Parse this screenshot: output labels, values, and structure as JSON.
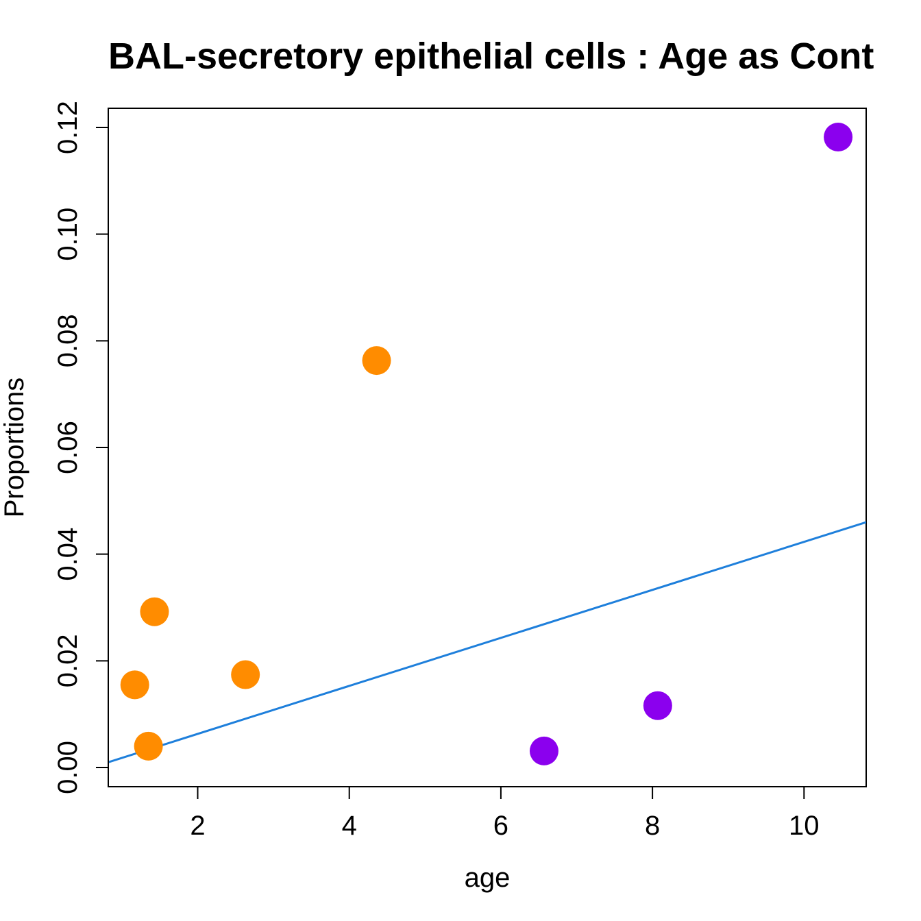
{
  "chart_data": {
    "type": "scatter",
    "title": "BAL-secretory epithelial cells : Age as Cont",
    "xlabel": "age",
    "ylabel": "Proportions",
    "xlim": [
      0.82,
      10.82
    ],
    "ylim": [
      -0.0036,
      0.1236
    ],
    "x_ticks": [
      2,
      4,
      6,
      8,
      10
    ],
    "x_tick_labels": [
      "2",
      "4",
      "6",
      "8",
      "10"
    ],
    "y_ticks": [
      0.0,
      0.02,
      0.04,
      0.06,
      0.08,
      0.1,
      0.12
    ],
    "y_tick_labels": [
      "0.00",
      "0.02",
      "0.04",
      "0.06",
      "0.08",
      "0.10",
      "0.12"
    ],
    "grid": false,
    "legend": "none",
    "series": [
      {
        "color": "#FF8C00",
        "points": [
          {
            "x": 1.17,
            "y": 0.0155
          },
          {
            "x": 1.43,
            "y": 0.0292
          },
          {
            "x": 1.35,
            "y": 0.004
          },
          {
            "x": 2.63,
            "y": 0.0174
          },
          {
            "x": 4.36,
            "y": 0.0763
          }
        ]
      },
      {
        "color": "#8B00EE",
        "points": [
          {
            "x": 6.57,
            "y": 0.0031
          },
          {
            "x": 8.07,
            "y": 0.0116
          },
          {
            "x": 10.45,
            "y": 0.1182
          }
        ]
      }
    ],
    "trend_line": {
      "color": "#1E7FDB",
      "intercept": -0.0027,
      "slope": 0.0045
    }
  }
}
